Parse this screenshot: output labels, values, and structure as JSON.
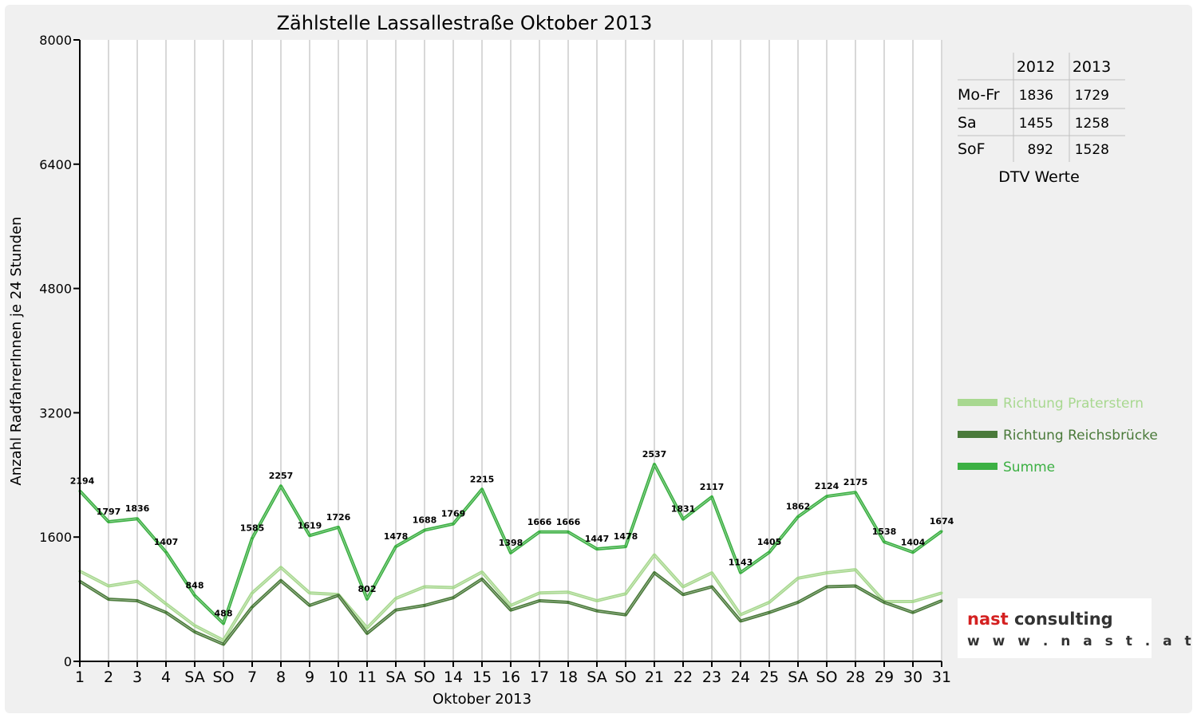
{
  "chart_data": {
    "type": "line",
    "title": "Zählstelle Lassallestraße Oktober 2013",
    "xlabel": "Oktober 2013",
    "ylabel": "Anzahl RadfahrerInnen je 24 Stunden",
    "ylim": [
      0,
      8000
    ],
    "yticks": [
      "0",
      "1600",
      "3200",
      "4800",
      "6400",
      "8000"
    ],
    "grid": "vertical",
    "legend_position": "right",
    "categories": [
      "1",
      "2",
      "3",
      "4",
      "SA",
      "SO",
      "7",
      "8",
      "9",
      "10",
      "11",
      "SA",
      "SO",
      "14",
      "15",
      "16",
      "17",
      "18",
      "SA",
      "SO",
      "21",
      "22",
      "23",
      "24",
      "25",
      "SA",
      "SO",
      "28",
      "29",
      "30",
      "31"
    ],
    "highlight_categories": [
      "SO"
    ],
    "highlight_color": "#ff0000",
    "series": [
      {
        "name": "Richtung Praterstern",
        "color": "#a8d890",
        "values": [
          1160,
          970,
          1030,
          740,
          460,
          270,
          880,
          1210,
          880,
          860,
          430,
          810,
          960,
          950,
          1150,
          720,
          880,
          890,
          780,
          870,
          1370,
          960,
          1140,
          600,
          760,
          1070,
          1140,
          1180,
          770,
          770,
          880
        ]
      },
      {
        "name": "Richtung Reichsbrücke",
        "color": "#4a7a3a",
        "values": [
          1030,
          800,
          780,
          630,
          380,
          220,
          700,
          1040,
          720,
          850,
          360,
          660,
          720,
          820,
          1060,
          660,
          780,
          760,
          650,
          600,
          1140,
          860,
          960,
          520,
          630,
          760,
          960,
          970,
          760,
          630,
          780
        ]
      },
      {
        "name": "Summe",
        "color": "#3cb043",
        "values": [
          2194,
          1797,
          1836,
          1407,
          848,
          488,
          1585,
          2257,
          1619,
          1726,
          802,
          1478,
          1688,
          1769,
          2215,
          1398,
          1666,
          1666,
          1447,
          1478,
          2537,
          1831,
          2117,
          1143,
          1405,
          1862,
          2124,
          2175,
          1538,
          1404,
          1674
        ],
        "labels": [
          "2194",
          "1797",
          "1836",
          "1407",
          "848",
          "488",
          "1585",
          "2257",
          "1619",
          "1726",
          "802",
          "1478",
          "1688",
          "1769",
          "2215",
          "1398",
          "1666",
          "1666",
          "1447",
          "1478",
          "2537",
          "1831",
          "2117",
          "1143",
          "1405",
          "1862",
          "2124",
          "2175",
          "1538",
          "1404",
          "1674"
        ]
      }
    ]
  },
  "dtv_table": {
    "caption": "DTV Werte",
    "columns": [
      "",
      "2012",
      "2013"
    ],
    "rows": [
      {
        "label": "Mo-Fr",
        "v2012": "1836",
        "v2013": "1729"
      },
      {
        "label": "Sa",
        "v2012": "1455",
        "v2013": "1258"
      },
      {
        "label": "SoF",
        "v2012": "892",
        "v2013": "1528"
      }
    ]
  },
  "logo": {
    "name": "nast consulting",
    "name_part1": "nast",
    "name_part2": "consulting",
    "url": "w w w . n a s t . a t",
    "color_red": "#d42020",
    "color_dark": "#333333"
  }
}
